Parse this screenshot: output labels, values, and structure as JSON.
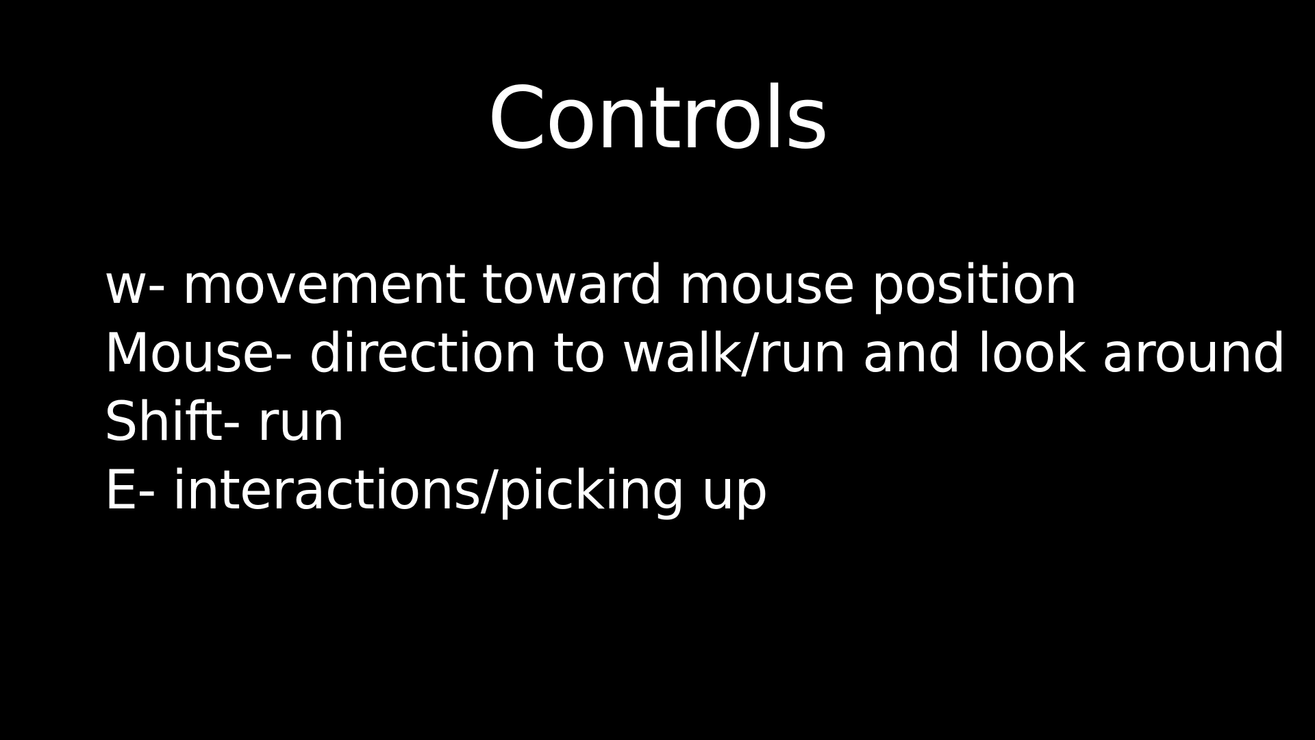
{
  "slide": {
    "title": "Controls",
    "controls": [
      {
        "text": "w- movement toward mouse position"
      },
      {
        "text": "Mouse- direction to walk/run and look around"
      },
      {
        "text": "Shift- run"
      },
      {
        "text": "E- interactions/picking up"
      }
    ]
  },
  "colors": {
    "background": "#000000",
    "text": "#ffffff"
  }
}
